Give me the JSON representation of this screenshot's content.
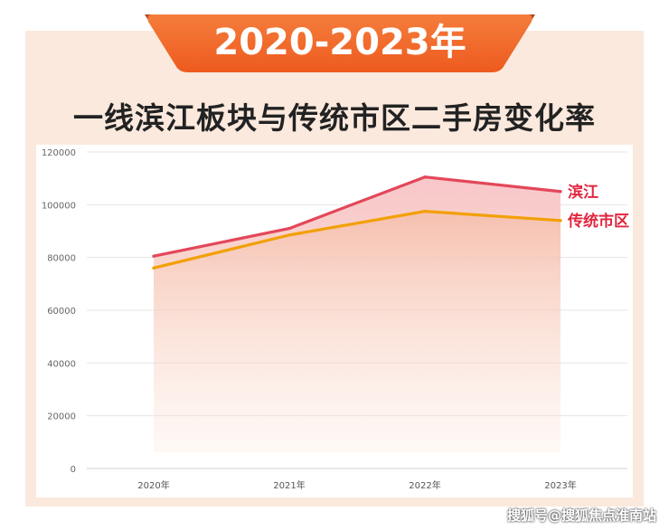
{
  "banner": {
    "text": "2020-2023年"
  },
  "headline": "一线滨江板块与传统市区二手房变化率",
  "watermark": "搜狐号@搜狐焦点淮南站",
  "colors": {
    "banner_orange": "#f26d2c",
    "frame_peach": "#fbe9dd",
    "series_binjiang": "#e3475a",
    "series_traditional": "#f2a007"
  },
  "chart_data": {
    "type": "area",
    "title": "",
    "xlabel": "",
    "ylabel": "",
    "categories": [
      "2020年",
      "2021年",
      "2022年",
      "2023年"
    ],
    "ylim": [
      0,
      120000
    ],
    "yticks": [
      0,
      20000,
      40000,
      60000,
      80000,
      100000,
      120000
    ],
    "grid": true,
    "legend": "inline-right",
    "series": [
      {
        "name": "滨江",
        "values": [
          80500,
          91000,
          110500,
          105000
        ],
        "color": "#e3475a"
      },
      {
        "name": "传统市区",
        "values": [
          76000,
          88500,
          97500,
          94000
        ],
        "color": "#f2a007"
      }
    ]
  }
}
